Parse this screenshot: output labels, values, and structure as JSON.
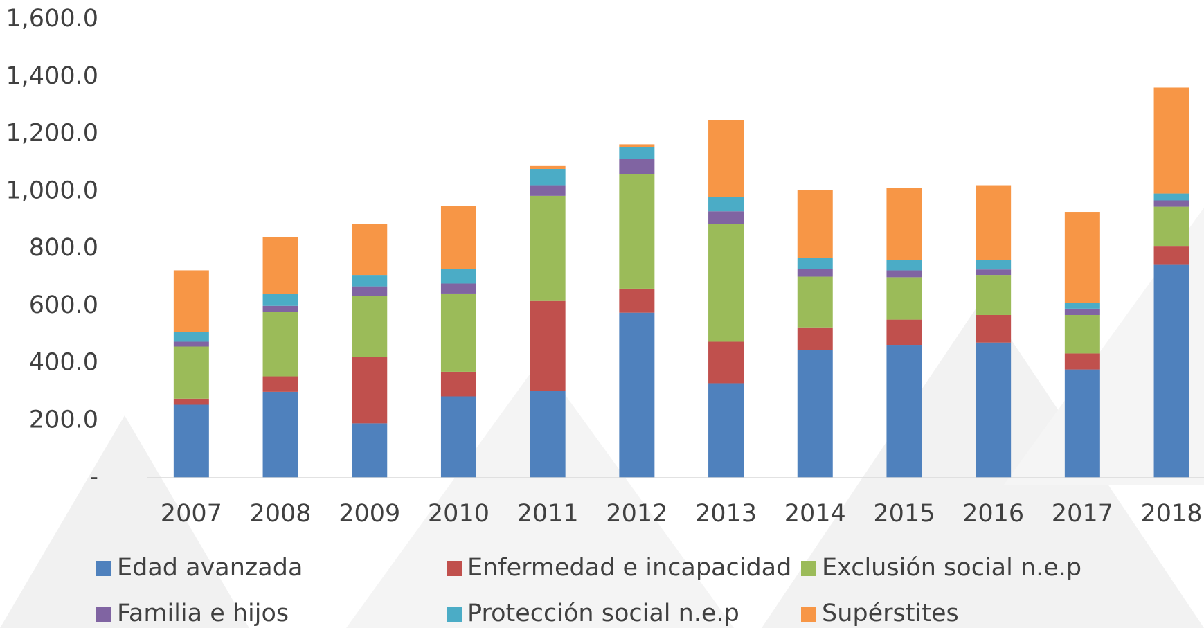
{
  "chart_data": {
    "type": "stacked_bar",
    "categories": [
      "2007",
      "2008",
      "2009",
      "2010",
      "2011",
      "2012",
      "2013",
      "2014",
      "2015",
      "2016",
      "2017",
      "2018"
    ],
    "series": [
      {
        "name": "Edad avanzada",
        "color": "#4f81bd",
        "values": [
          255,
          300,
          190,
          284,
          303,
          576,
          330,
          445,
          464,
          472,
          378,
          743
        ]
      },
      {
        "name": "Enfermedad e incapacidad",
        "color": "#c0504d",
        "values": [
          21,
          54,
          231,
          86,
          314,
          84,
          145,
          80,
          88,
          96,
          56,
          64
        ]
      },
      {
        "name": "Exclusión social n.e.p",
        "color": "#9bbb59",
        "values": [
          182,
          225,
          214,
          273,
          367,
          399,
          410,
          177,
          148,
          140,
          134,
          139
        ]
      },
      {
        "name": "Familia e hijos",
        "color": "#8064a2",
        "values": [
          17,
          21,
          33,
          35,
          37,
          54,
          45,
          27,
          24,
          19,
          22,
          22
        ]
      },
      {
        "name": "Protección social n.e.p",
        "color": "#4bacc6",
        "values": [
          34,
          41,
          40,
          51,
          57,
          40,
          51,
          38,
          37,
          32,
          21,
          24
        ]
      },
      {
        "name": "Supérstites",
        "color": "#f79646",
        "values": [
          215,
          198,
          177,
          220,
          10,
          11,
          268,
          236,
          250,
          262,
          317,
          370
        ]
      }
    ],
    "ylim": [
      0,
      1600
    ],
    "yticks": [
      {
        "value": 0,
        "label": "-"
      },
      {
        "value": 200,
        "label": "200.0"
      },
      {
        "value": 400,
        "label": "400.0"
      },
      {
        "value": 600,
        "label": "600.0"
      },
      {
        "value": 800,
        "label": "800.0"
      },
      {
        "value": 1000,
        "label": "1,000.0"
      },
      {
        "value": 1200,
        "label": "1,200.0"
      },
      {
        "value": 1400,
        "label": "1,400.0"
      },
      {
        "value": 1600,
        "label": "1,600.0"
      }
    ],
    "grid": false
  }
}
